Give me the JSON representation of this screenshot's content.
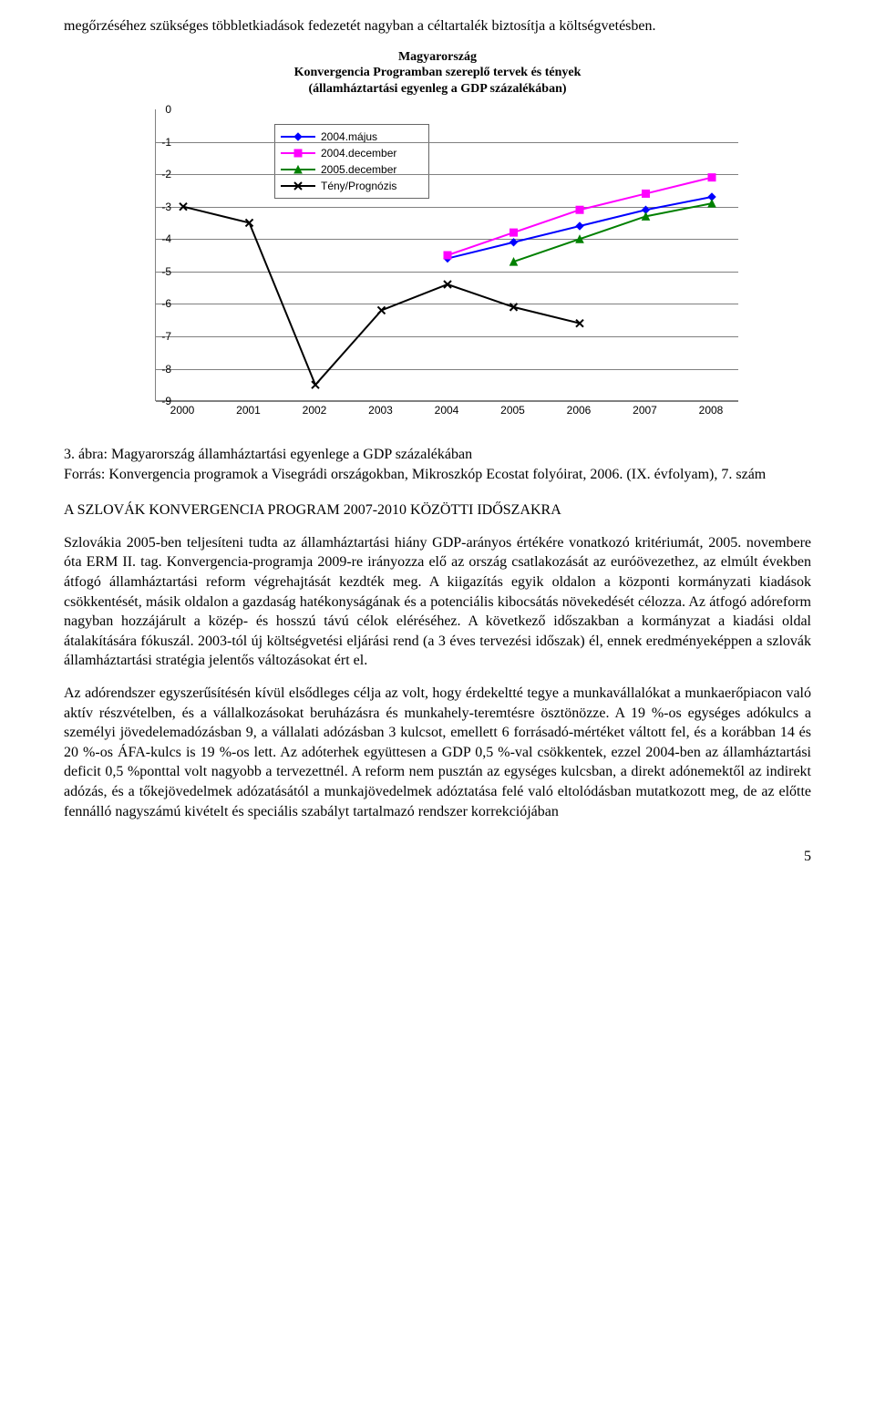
{
  "intro_para": "megőrzéséhez szükséges többletkiadások fedezetét nagyban a céltartalék biztosítja a költségvetésben.",
  "chart": {
    "type": "line",
    "title_line1": "Magyarország",
    "title_line2": "Konvergencia Programban szereplő tervek és tények",
    "title_line3": "(államháztartási egyenleg a GDP százalékában)",
    "title_fontsize": 14,
    "x_categories": [
      "2000",
      "2001",
      "2002",
      "2003",
      "2004",
      "2005",
      "2006",
      "2007",
      "2008"
    ],
    "ylim": [
      -9,
      0
    ],
    "ytick_step": 1,
    "y_labels": [
      "0",
      "-1",
      "-2",
      "-3",
      "-4",
      "-5",
      "-6",
      "-7",
      "-8",
      "-9"
    ],
    "grid_color": "#808080",
    "background_color": "#ffffff",
    "line_width": 2,
    "marker_size": 8,
    "legend_position": "upper-left-inside",
    "series": [
      {
        "name": "2004.május",
        "color": "#0000ff",
        "marker": "diamond",
        "x": [
          4,
          5,
          6,
          7,
          8
        ],
        "y": [
          -4.6,
          -4.1,
          -3.6,
          -3.1,
          -2.7
        ]
      },
      {
        "name": "2004.december",
        "color": "#ff00ff",
        "marker": "square",
        "x": [
          4,
          5,
          6,
          7,
          8
        ],
        "y": [
          -4.5,
          -3.8,
          -3.1,
          -2.6,
          -2.1
        ]
      },
      {
        "name": "2005.december",
        "color": "#008000",
        "marker": "triangle",
        "x": [
          5,
          6,
          7,
          8
        ],
        "y": [
          -4.7,
          -4.0,
          -3.3,
          -2.9
        ]
      },
      {
        "name": "Tény/Prognózis",
        "color": "#000000",
        "marker": "x",
        "x": [
          0,
          1,
          2,
          3,
          4,
          5,
          6
        ],
        "y": [
          -3.0,
          -3.5,
          -8.5,
          -6.2,
          -5.4,
          -6.1,
          -6.6
        ]
      }
    ]
  },
  "caption": "3. ábra: Magyarország államháztartási egyenlege a GDP százalékában\nForrás: Konvergencia programok a Visegrádi országokban, Mikroszkóp Ecostat folyóirat, 2006. (IX. évfolyam), 7. szám",
  "section_head": "A SZLOVÁK KONVERGENCIA PROGRAM 2007-2010 KÖZÖTTI IDŐSZAKRA",
  "para1": "Szlovákia 2005-ben teljesíteni tudta az államháztartási hiány GDP-arányos értékére vonatkozó kritériumát, 2005. novembere óta ERM II. tag. Konvergencia-programja 2009-re irányozza elő az ország csatlakozását az euróövezethez, az elmúlt években átfogó államháztartási reform végrehajtását kezdték meg. A kiigazítás egyik oldalon a központi kormányzati kiadások csökkentését, másik oldalon a gazdaság hatékonyságának és a potenciális kibocsátás növekedését célozza. Az átfogó adóreform nagyban hozzájárult a közép- és hosszú távú célok eléréséhez. A következő időszakban a kormányzat a kiadási oldal átalakítására fókuszál. 2003-tól új költségvetési eljárási rend (a 3 éves tervezési időszak) él, ennek eredményeképpen a szlovák államháztartási stratégia jelentős változásokat ért el.",
  "para2": "Az adórendszer egyszerűsítésén kívül elsődleges célja az volt, hogy érdekeltté tegye a munkavállalókat a munkaerőpiacon való aktív részvételben, és a vállalkozásokat beruházásra és munkahely-teremtésre ösztönözze. A 19 %-os egységes adókulcs a személyi jövedelemadózásban 9, a vállalati adózásban 3 kulcsot, emellett 6 forrásadó-mértéket váltott fel, és a korábban 14 és 20 %-os ÁFA-kulcs is 19 %-os lett. Az adóterhek együttesen a GDP 0,5 %-val csökkentek, ezzel 2004-ben az államháztartási deficit 0,5 %ponttal volt nagyobb a tervezettnél. A reform nem pusztán az egységes kulcsban, a direkt adónemektől az indirekt adózás, és a tőkejövedelmek adózatásától a munkajövedelmek adóztatása felé való eltolódásban mutatkozott meg, de az előtte fennálló nagyszámú kivételt és speciális szabályt tartalmazó rendszer korrekciójában",
  "page_number": "5"
}
